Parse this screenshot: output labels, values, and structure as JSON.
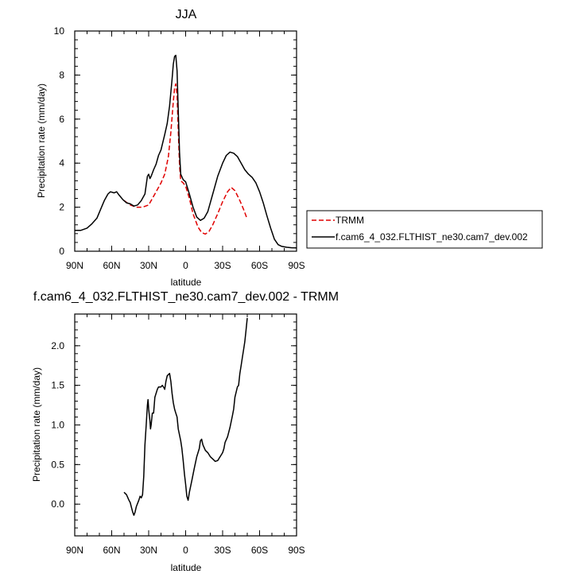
{
  "chart_data": [
    {
      "type": "line",
      "title": "JJA",
      "xlabel": "latitude",
      "ylabel": "Precipitation rate (mm/day)",
      "xlim": [
        90,
        -90
      ],
      "ylim": [
        0,
        10
      ],
      "xticks": [
        "90N",
        "60N",
        "30N",
        "0",
        "30S",
        "60S",
        "90S"
      ],
      "xtick_values": [
        90,
        60,
        30,
        0,
        -30,
        -60,
        -90
      ],
      "yticks": [
        "0",
        "2",
        "4",
        "6",
        "8",
        "10"
      ],
      "ytick_values": [
        0,
        2,
        4,
        6,
        8,
        10
      ],
      "legend_position": "right",
      "series": [
        {
          "name": "TRMM",
          "color": "#e00000",
          "dash": "dashed",
          "points": [
            [
              50,
              2.3
            ],
            [
              45,
              2.1
            ],
            [
              40,
              2.0
            ],
            [
              35,
              2.0
            ],
            [
              30,
              2.1
            ],
            [
              25,
              2.6
            ],
            [
              20,
              3.1
            ],
            [
              17,
              3.5
            ],
            [
              14,
              4.3
            ],
            [
              12,
              5.4
            ],
            [
              10,
              6.8
            ],
            [
              9,
              7.4
            ],
            [
              8,
              7.6
            ],
            [
              7,
              7.1
            ],
            [
              6,
              5.5
            ],
            [
              5,
              3.9
            ],
            [
              4,
              3.2
            ],
            [
              2,
              3.1
            ],
            [
              0,
              2.95
            ],
            [
              -3,
              2.4
            ],
            [
              -6,
              1.7
            ],
            [
              -10,
              1.1
            ],
            [
              -13,
              0.85
            ],
            [
              -16,
              0.78
            ],
            [
              -19,
              0.9
            ],
            [
              -22,
              1.2
            ],
            [
              -26,
              1.7
            ],
            [
              -30,
              2.25
            ],
            [
              -34,
              2.7
            ],
            [
              -37,
              2.9
            ],
            [
              -40,
              2.75
            ],
            [
              -44,
              2.3
            ],
            [
              -47,
              1.9
            ],
            [
              -50,
              1.45
            ]
          ]
        },
        {
          "name": "f.cam6_4_032.FLTHIST_ne30.cam7_dev.002",
          "color": "#000000",
          "dash": "solid",
          "points": [
            [
              90,
              0.95
            ],
            [
              85,
              0.95
            ],
            [
              80,
              1.05
            ],
            [
              76,
              1.25
            ],
            [
              72,
              1.5
            ],
            [
              69,
              1.9
            ],
            [
              66,
              2.3
            ],
            [
              63,
              2.6
            ],
            [
              61,
              2.7
            ],
            [
              58,
              2.65
            ],
            [
              56,
              2.7
            ],
            [
              54,
              2.55
            ],
            [
              51,
              2.35
            ],
            [
              48,
              2.2
            ],
            [
              45,
              2.15
            ],
            [
              42,
              2.05
            ],
            [
              39,
              2.1
            ],
            [
              36,
              2.3
            ],
            [
              33,
              2.6
            ],
            [
              31,
              3.4
            ],
            [
              30,
              3.5
            ],
            [
              29,
              3.3
            ],
            [
              28,
              3.4
            ],
            [
              26,
              3.7
            ],
            [
              24,
              3.95
            ],
            [
              22,
              4.35
            ],
            [
              20,
              4.6
            ],
            [
              17,
              5.3
            ],
            [
              15,
              5.8
            ],
            [
              13,
              6.6
            ],
            [
              11,
              7.8
            ],
            [
              10,
              8.5
            ],
            [
              9,
              8.85
            ],
            [
              8,
              8.9
            ],
            [
              7,
              8.2
            ],
            [
              6,
              6.4
            ],
            [
              5,
              4.5
            ],
            [
              4,
              3.5
            ],
            [
              2,
              3.25
            ],
            [
              0,
              3.15
            ],
            [
              -3,
              2.6
            ],
            [
              -6,
              2.0
            ],
            [
              -9,
              1.55
            ],
            [
              -12,
              1.4
            ],
            [
              -15,
              1.5
            ],
            [
              -18,
              1.8
            ],
            [
              -22,
              2.6
            ],
            [
              -26,
              3.4
            ],
            [
              -30,
              4.0
            ],
            [
              -33,
              4.35
            ],
            [
              -36,
              4.5
            ],
            [
              -39,
              4.45
            ],
            [
              -42,
              4.3
            ],
            [
              -45,
              4.0
            ],
            [
              -48,
              3.7
            ],
            [
              -51,
              3.5
            ],
            [
              -54,
              3.35
            ],
            [
              -57,
              3.1
            ],
            [
              -60,
              2.7
            ],
            [
              -63,
              2.2
            ],
            [
              -66,
              1.6
            ],
            [
              -69,
              1.05
            ],
            [
              -72,
              0.55
            ],
            [
              -75,
              0.3
            ],
            [
              -78,
              0.22
            ],
            [
              -82,
              0.18
            ],
            [
              -86,
              0.16
            ],
            [
              -90,
              0.15
            ]
          ]
        }
      ]
    },
    {
      "type": "line",
      "title": "f.cam6_4_032.FLTHIST_ne30.cam7_dev.002 - TRMM",
      "xlabel": "latitude",
      "ylabel": "Precipitation rate (mm/day)",
      "xlim": [
        90,
        -90
      ],
      "ylim": [
        -0.4,
        2.4
      ],
      "xticks": [
        "90N",
        "60N",
        "30N",
        "0",
        "30S",
        "60S",
        "90S"
      ],
      "xtick_values": [
        90,
        60,
        30,
        0,
        -30,
        -60,
        -90
      ],
      "yticks": [
        "0.0",
        "0.5",
        "1.0",
        "1.5",
        "2.0"
      ],
      "ytick_values": [
        0.0,
        0.5,
        1.0,
        1.5,
        2.0
      ],
      "series": [
        {
          "name": "",
          "color": "#000000",
          "dash": "solid",
          "points": [
            [
              50,
              0.15
            ],
            [
              48,
              0.12
            ],
            [
              46,
              0.05
            ],
            [
              45,
              0.02
            ],
            [
              44,
              -0.04
            ],
            [
              43,
              -0.1
            ],
            [
              42,
              -0.14
            ],
            [
              41,
              -0.1
            ],
            [
              40,
              -0.03
            ],
            [
              38,
              0.05
            ],
            [
              37,
              0.1
            ],
            [
              36,
              0.08
            ],
            [
              35,
              0.12
            ],
            [
              34,
              0.35
            ],
            [
              33,
              0.75
            ],
            [
              32,
              1.0
            ],
            [
              31,
              1.25
            ],
            [
              30.5,
              1.32
            ],
            [
              30,
              1.2
            ],
            [
              29,
              1.05
            ],
            [
              28.5,
              0.95
            ],
            [
              28,
              1.0
            ],
            [
              27,
              1.15
            ],
            [
              26,
              1.15
            ],
            [
              25,
              1.35
            ],
            [
              23,
              1.45
            ],
            [
              22,
              1.48
            ],
            [
              20,
              1.48
            ],
            [
              19,
              1.5
            ],
            [
              18,
              1.48
            ],
            [
              17,
              1.45
            ],
            [
              16,
              1.55
            ],
            [
              15,
              1.62
            ],
            [
              13,
              1.65
            ],
            [
              12,
              1.55
            ],
            [
              11,
              1.4
            ],
            [
              10,
              1.28
            ],
            [
              9,
              1.2
            ],
            [
              8,
              1.15
            ],
            [
              7,
              1.1
            ],
            [
              6,
              0.95
            ],
            [
              4,
              0.8
            ],
            [
              3,
              0.7
            ],
            [
              2,
              0.55
            ],
            [
              1,
              0.38
            ],
            [
              0,
              0.25
            ],
            [
              -1,
              0.1
            ],
            [
              -2,
              0.05
            ],
            [
              -3,
              0.15
            ],
            [
              -5,
              0.3
            ],
            [
              -7,
              0.45
            ],
            [
              -9,
              0.6
            ],
            [
              -11,
              0.7
            ],
            [
              -12,
              0.8
            ],
            [
              -13,
              0.82
            ],
            [
              -14,
              0.75
            ],
            [
              -16,
              0.68
            ],
            [
              -18,
              0.65
            ],
            [
              -20,
              0.6
            ],
            [
              -22,
              0.57
            ],
            [
              -24,
              0.54
            ],
            [
              -26,
              0.55
            ],
            [
              -28,
              0.6
            ],
            [
              -30,
              0.65
            ],
            [
              -31,
              0.7
            ],
            [
              -32,
              0.78
            ],
            [
              -34,
              0.85
            ],
            [
              -36,
              0.97
            ],
            [
              -38,
              1.12
            ],
            [
              -39,
              1.2
            ],
            [
              -40,
              1.35
            ],
            [
              -42,
              1.48
            ],
            [
              -43,
              1.5
            ],
            [
              -44,
              1.65
            ],
            [
              -45,
              1.75
            ],
            [
              -46,
              1.85
            ],
            [
              -47,
              1.95
            ],
            [
              -48,
              2.05
            ],
            [
              -49,
              2.2
            ],
            [
              -50,
              2.35
            ]
          ]
        }
      ]
    }
  ]
}
